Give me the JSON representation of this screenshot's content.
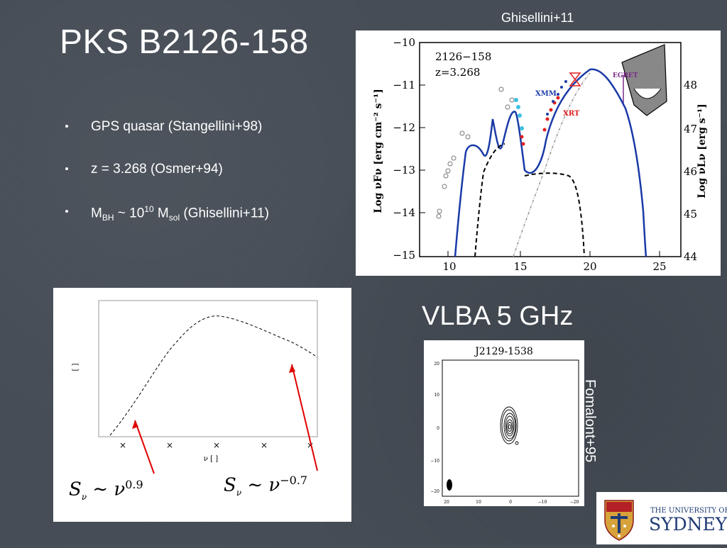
{
  "slide": {
    "title": "PKS B2126-158",
    "credit_top": "Ghisellini+11",
    "bullets": [
      {
        "text": "GPS quasar (Stangellini+98)"
      },
      {
        "text": "z = 3.268 (Osmer+94)"
      },
      {
        "pre": "M",
        "sub1": "BH",
        "mid": " ~ 10",
        "sup": "10",
        "mid2": " M",
        "sub2": "sol",
        "post": " (Ghisellini+11)"
      }
    ],
    "vlba_title": "VLBA 5 GHz",
    "credit_side": "Fomalont+95"
  },
  "sed_plot": {
    "label_source": "2126−158",
    "label_z": "z=3.268",
    "ylabel_left": "Log νFν [erg cm⁻² s⁻¹]",
    "ylabel_right": "Log νLν [erg s⁻¹]",
    "yticks_left": [
      "−10",
      "−11",
      "−12",
      "−13",
      "−14",
      "−15"
    ],
    "yticks_right": [
      "48",
      "47",
      "46",
      "45",
      "44"
    ],
    "xticks": [
      "10",
      "15",
      "20",
      "25"
    ],
    "annotations": [
      "XMM",
      "XRT",
      "EGRET"
    ]
  },
  "model_plot": {
    "ylabel": "[ ]",
    "xlabel": "ν [ ]",
    "xtick_marks": [
      "×",
      "×",
      "×",
      "×",
      "×"
    ],
    "eq_left_base": "S",
    "eq_left_sub": "ν",
    "eq_left_rel": " ∼ ν",
    "eq_left_exp": "0.9",
    "eq_right_base": "S",
    "eq_right_sub": "ν",
    "eq_right_rel": " ∼ ν",
    "eq_right_exp": "−0.7"
  },
  "vlba_map": {
    "title": "J2129-1538",
    "yticks": [
      "20",
      "10",
      "0",
      "−10",
      "−20"
    ],
    "xticks": [
      "20",
      "10",
      "0",
      "−10",
      "−20"
    ]
  },
  "logo": {
    "line1": "THE UNIVERSITY OF",
    "line2": "SYDNEY"
  }
}
